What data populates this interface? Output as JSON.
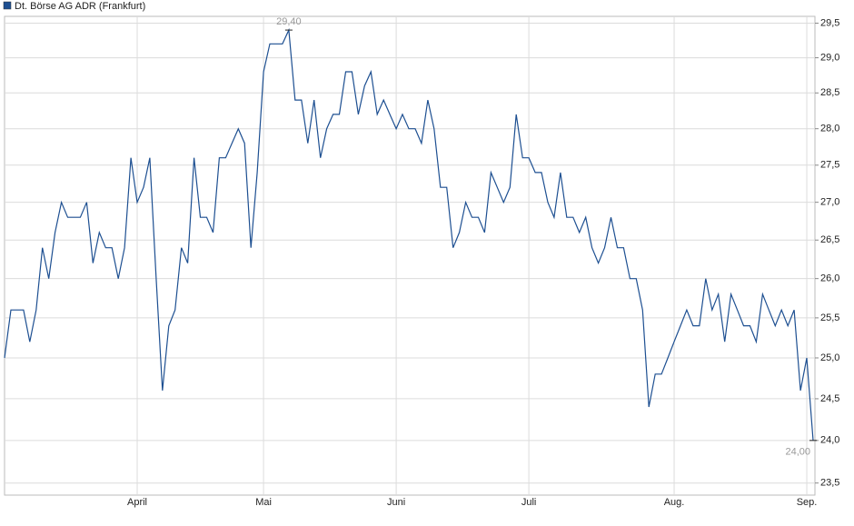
{
  "chart_data": {
    "type": "line",
    "log_scale": true,
    "grid": true,
    "series": [
      {
        "name": "Dt. Börse AG ADR (Frankfurt)",
        "color": "#1d4f91",
        "values": [
          25.0,
          25.6,
          25.6,
          25.6,
          25.2,
          25.6,
          26.4,
          26.0,
          26.6,
          27.0,
          26.8,
          26.8,
          26.8,
          27.0,
          26.2,
          26.6,
          26.4,
          26.4,
          26.0,
          26.4,
          27.6,
          27.0,
          27.2,
          27.6,
          26.0,
          24.6,
          25.4,
          25.6,
          26.4,
          26.2,
          27.6,
          26.8,
          26.8,
          26.6,
          27.6,
          27.6,
          27.8,
          28.0,
          27.8,
          26.4,
          27.4,
          28.8,
          29.2,
          29.2,
          29.2,
          29.4,
          28.4,
          28.4,
          27.8,
          28.4,
          27.6,
          28.0,
          28.2,
          28.2,
          28.8,
          28.8,
          28.2,
          28.6,
          28.8,
          28.2,
          28.4,
          28.2,
          28.0,
          28.2,
          28.0,
          28.0,
          27.8,
          28.4,
          28.0,
          27.2,
          27.2,
          26.4,
          26.6,
          27.0,
          26.8,
          26.8,
          26.6,
          27.4,
          27.2,
          27.0,
          27.2,
          28.2,
          27.6,
          27.6,
          27.4,
          27.4,
          27.0,
          26.8,
          27.4,
          26.8,
          26.8,
          26.6,
          26.8,
          26.4,
          26.2,
          26.4,
          26.8,
          26.4,
          26.4,
          26.0,
          26.0,
          25.6,
          24.4,
          24.8,
          24.8,
          25.0,
          25.2,
          25.4,
          25.6,
          25.4,
          25.4,
          26.0,
          25.6,
          25.8,
          25.2,
          25.8,
          25.6,
          25.4,
          25.4,
          25.2,
          25.8,
          25.6,
          25.4,
          25.6,
          25.4,
          25.6,
          24.6,
          25.0,
          24.0
        ]
      }
    ],
    "categories": [
      null,
      null,
      null,
      null,
      null,
      null,
      null,
      null,
      null,
      null,
      null,
      null,
      null,
      null,
      null,
      null,
      null,
      null,
      null,
      null,
      null,
      "April",
      null,
      null,
      null,
      null,
      null,
      null,
      null,
      null,
      null,
      null,
      null,
      null,
      null,
      null,
      null,
      null,
      null,
      null,
      null,
      "Mai",
      null,
      null,
      null,
      null,
      null,
      null,
      null,
      null,
      null,
      null,
      null,
      null,
      null,
      null,
      null,
      null,
      null,
      null,
      null,
      null,
      "Juni",
      null,
      null,
      null,
      null,
      null,
      null,
      null,
      null,
      null,
      null,
      null,
      null,
      null,
      null,
      null,
      null,
      null,
      null,
      null,
      null,
      "Juli",
      null,
      null,
      null,
      null,
      null,
      null,
      null,
      null,
      null,
      null,
      null,
      null,
      null,
      null,
      null,
      null,
      null,
      null,
      null,
      null,
      null,
      null,
      "Aug.",
      null,
      null,
      null,
      null,
      null,
      null,
      null,
      null,
      null,
      null,
      null,
      null,
      null,
      null,
      null,
      null,
      null,
      null,
      null,
      null,
      "Sep.",
      null
    ],
    "ylim": [
      23.36,
      29.6
    ],
    "yticks": [
      {
        "value": 23.5,
        "label": "23,5"
      },
      {
        "value": 24.0,
        "label": "24,0"
      },
      {
        "value": 24.5,
        "label": "24,5"
      },
      {
        "value": 25.0,
        "label": "25,0"
      },
      {
        "value": 25.5,
        "label": "25,5"
      },
      {
        "value": 26.0,
        "label": "26,0"
      },
      {
        "value": 26.5,
        "label": "26,5"
      },
      {
        "value": 27.0,
        "label": "27,0"
      },
      {
        "value": 27.5,
        "label": "27,5"
      },
      {
        "value": 28.0,
        "label": "28,0"
      },
      {
        "value": 28.5,
        "label": "28,5"
      },
      {
        "value": 29.0,
        "label": "29,0"
      },
      {
        "value": 29.5,
        "label": "29,5"
      }
    ],
    "max_label": {
      "value": 29.4,
      "label": "29,40"
    },
    "last_label": {
      "value": 24.0,
      "label": "24,00"
    }
  }
}
